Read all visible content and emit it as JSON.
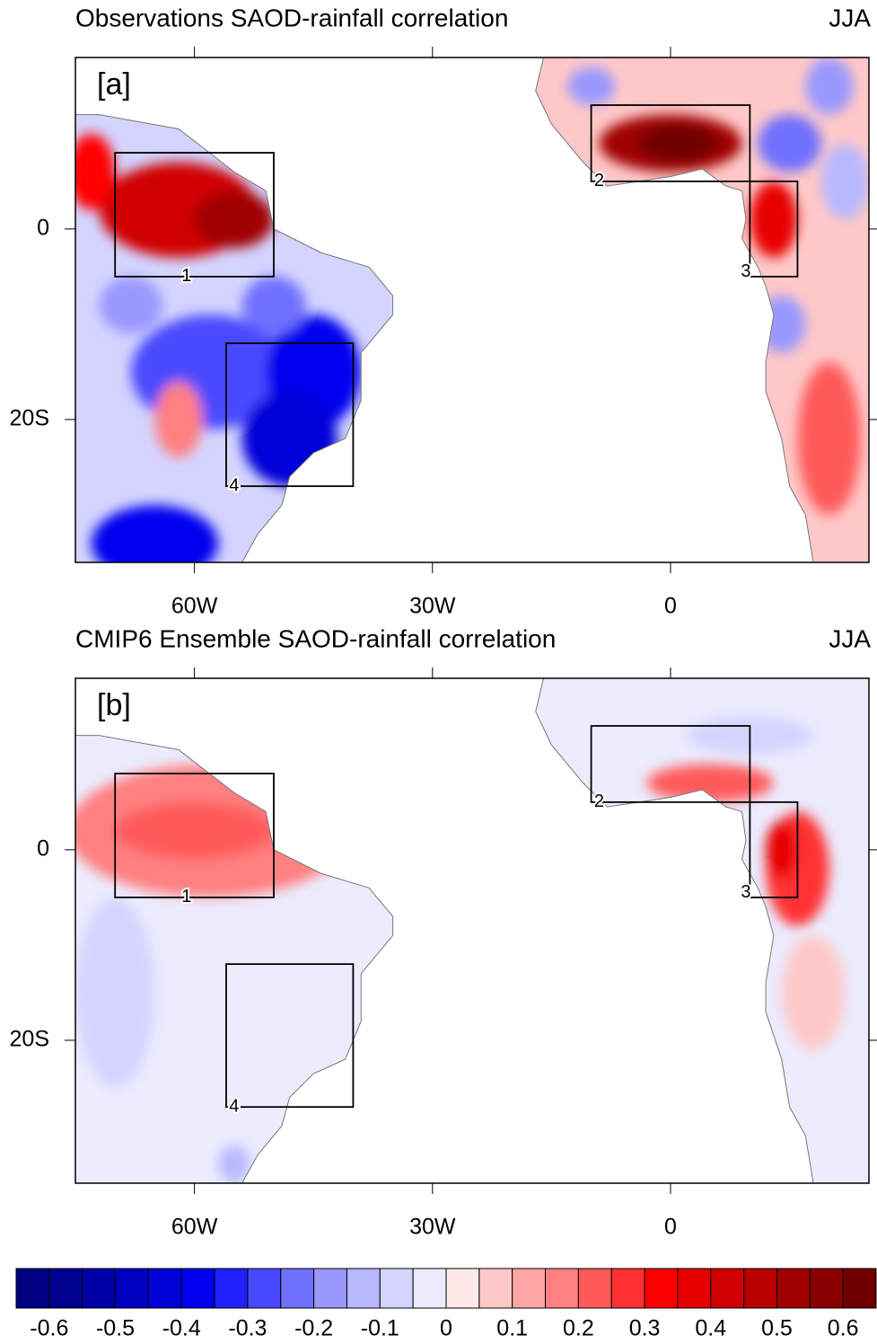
{
  "panels": [
    {
      "title": "Observations SAOD-rainfall correlation",
      "season": "JJA",
      "label": "[a]",
      "xlim": [
        -75,
        25
      ],
      "ylim": [
        -35,
        18
      ],
      "xticks": [
        {
          "value": -60,
          "label": "60W"
        },
        {
          "value": -30,
          "label": "30W"
        },
        0
      ],
      "yticks": [
        0,
        {
          "value": -20,
          "label": "20S"
        }
      ],
      "box_labels": [
        "1",
        "2",
        "3",
        "4"
      ]
    },
    {
      "title": "CMIP6 Ensemble SAOD-rainfall correlation",
      "season": "JJA",
      "label": "[b]",
      "xlim": [
        -75,
        25
      ],
      "ylim": [
        -35,
        18
      ],
      "xticks": [
        {
          "value": -60,
          "label": "60W"
        },
        {
          "value": -30,
          "label": "30W"
        },
        0
      ],
      "yticks": [
        0,
        {
          "value": -20,
          "label": "20S"
        }
      ],
      "box_labels": [
        "1",
        "2",
        "3",
        "4"
      ]
    }
  ],
  "colorbar": {
    "labels": [
      -0.6,
      -0.5,
      -0.4,
      -0.3,
      -0.2,
      -0.1,
      0,
      0.1,
      0.2,
      0.3,
      0.4,
      0.5,
      0.6
    ],
    "colors": [
      "#000080",
      "#00008f",
      "#0000a8",
      "#0000c0",
      "#0000d8",
      "#0000f0",
      "#2020ff",
      "#4848ff",
      "#7070ff",
      "#9898ff",
      "#b8b8ff",
      "#d4d4ff",
      "#ececff",
      "#ffeaea",
      "#ffc8c8",
      "#ffa6a6",
      "#ff8080",
      "#ff5a5a",
      "#ff3030",
      "#ff0000",
      "#e80000",
      "#d00000",
      "#b80000",
      "#a00000",
      "#880000",
      "#700000"
    ]
  }
}
